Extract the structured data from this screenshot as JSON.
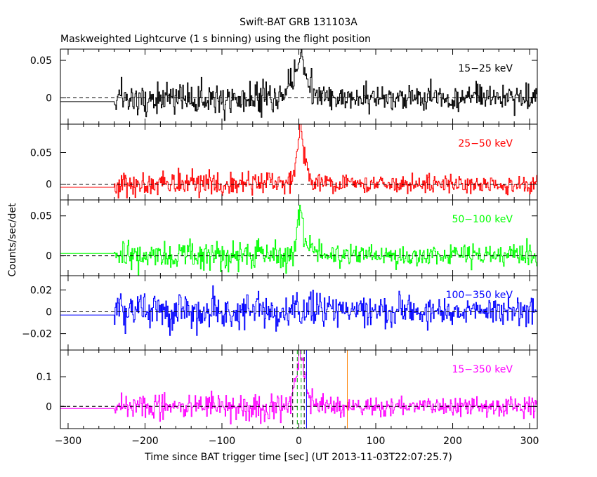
{
  "title": "Swift-BAT GRB 131103A",
  "subtitle": "Maskweighted Lightcurve (1 s binning) using the flight position",
  "chart_data": {
    "type": "line",
    "xlabel": "Time since BAT trigger time [sec] (UT 2013-11-03T22:07:25.7)",
    "ylabel": "Counts/sec/det",
    "xlim": [
      -310,
      310
    ],
    "xticks": [
      -300,
      -200,
      -100,
      0,
      100,
      200,
      300
    ],
    "panels": [
      {
        "label": "15−25 keV",
        "color": "#000000",
        "ylim": [
          -0.035,
          0.065
        ],
        "yticks": [
          {
            "v": 0,
            "l": "0"
          },
          {
            "v": 0.05,
            "l": "0.05"
          }
        ],
        "flat_level": -0.005,
        "noise": 0.011,
        "peak": 0.04,
        "peak_width": 9
      },
      {
        "label": "25−50 keV",
        "color": "#ff0000",
        "ylim": [
          -0.025,
          0.095
        ],
        "yticks": [
          {
            "v": 0,
            "l": "0"
          },
          {
            "v": 0.05,
            "l": "0.05"
          }
        ],
        "flat_level": -0.005,
        "noise": 0.01,
        "peak": 0.075,
        "peak_width": 5
      },
      {
        "label": "50−100 keV",
        "color": "#00ff00",
        "ylim": [
          -0.025,
          0.07
        ],
        "yticks": [
          {
            "v": 0,
            "l": "0"
          },
          {
            "v": 0.05,
            "l": "0.05"
          }
        ],
        "flat_level": 0.003,
        "noise": 0.009,
        "peak": 0.05,
        "peak_width": 4
      },
      {
        "label": "100−350 keV",
        "color": "#0000ff",
        "ylim": [
          -0.035,
          0.033
        ],
        "yticks": [
          {
            "v": -0.02,
            "l": "−0.02"
          },
          {
            "v": 0,
            "l": "0"
          },
          {
            "v": 0.02,
            "l": "0.02"
          }
        ],
        "flat_level": -0.003,
        "noise": 0.009,
        "peak": 0.0,
        "peak_width": 4
      },
      {
        "label": "15−350 keV",
        "color": "#ff00ff",
        "ylim": [
          -0.075,
          0.19
        ],
        "yticks": [
          {
            "v": 0,
            "l": "0"
          },
          {
            "v": 0.1,
            "l": "0.1"
          }
        ],
        "flat_level": -0.007,
        "noise": 0.022,
        "peak": 0.15,
        "peak_width": 6
      }
    ],
    "data_start": -240,
    "dashed_zero_line": true,
    "markers_last_panel": [
      {
        "x": -8,
        "color": "#000000",
        "style": "dashed"
      },
      {
        "x": 7,
        "color": "#000000",
        "style": "dashed"
      },
      {
        "x": -2,
        "color": "#00aa00",
        "style": "dashed"
      },
      {
        "x": 3,
        "color": "#00aa00",
        "style": "dashed"
      },
      {
        "x": 10,
        "color": "#0000ff",
        "style": "solid"
      },
      {
        "x": 63,
        "color": "#ff8000",
        "style": "solid"
      }
    ]
  }
}
